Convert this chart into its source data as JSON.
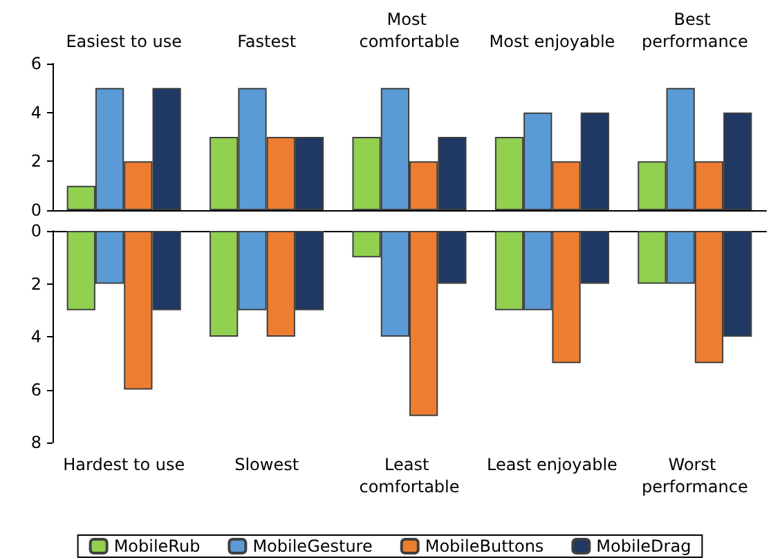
{
  "chart_data": [
    {
      "type": "bar",
      "categories": [
        "Easiest to use",
        "Fastest",
        "Most comfortable",
        "Most enjoyable",
        "Best performance"
      ],
      "ylim": [
        0,
        6
      ],
      "yticks": [
        0,
        2,
        4,
        6
      ],
      "grid": false,
      "series": [
        {
          "color": "#92d050",
          "values": [
            1,
            3,
            3,
            3,
            2
          ]
        },
        {
          "color": "#5b9bd5",
          "values": [
            5,
            5,
            5,
            4,
            5
          ]
        },
        {
          "color": "#ed7d31",
          "values": [
            2,
            3,
            2,
            2,
            2
          ]
        },
        {
          "color": "#1f3864",
          "values": [
            5,
            3,
            3,
            4,
            4
          ]
        }
      ]
    },
    {
      "type": "bar",
      "categories": [
        "Hardest to use",
        "Slowest",
        "Least comfortable",
        "Least enjoyable",
        "Worst performance"
      ],
      "ylim": [
        8,
        0
      ],
      "yticks": [
        0,
        2,
        4,
        6,
        8
      ],
      "grid": false,
      "legend": "bottom",
      "series": [
        {
          "name": "MobileRub",
          "color": "#92d050",
          "values": [
            3,
            4,
            1,
            3,
            2
          ]
        },
        {
          "name": "MobileGesture",
          "color": "#5b9bd5",
          "values": [
            2,
            3,
            4,
            3,
            2
          ]
        },
        {
          "name": "MobileButtons",
          "color": "#ed7d31",
          "values": [
            6,
            4,
            7,
            5,
            5
          ]
        },
        {
          "name": "MobileDrag",
          "color": "#1f3864",
          "values": [
            3,
            3,
            2,
            2,
            4
          ]
        }
      ]
    }
  ]
}
